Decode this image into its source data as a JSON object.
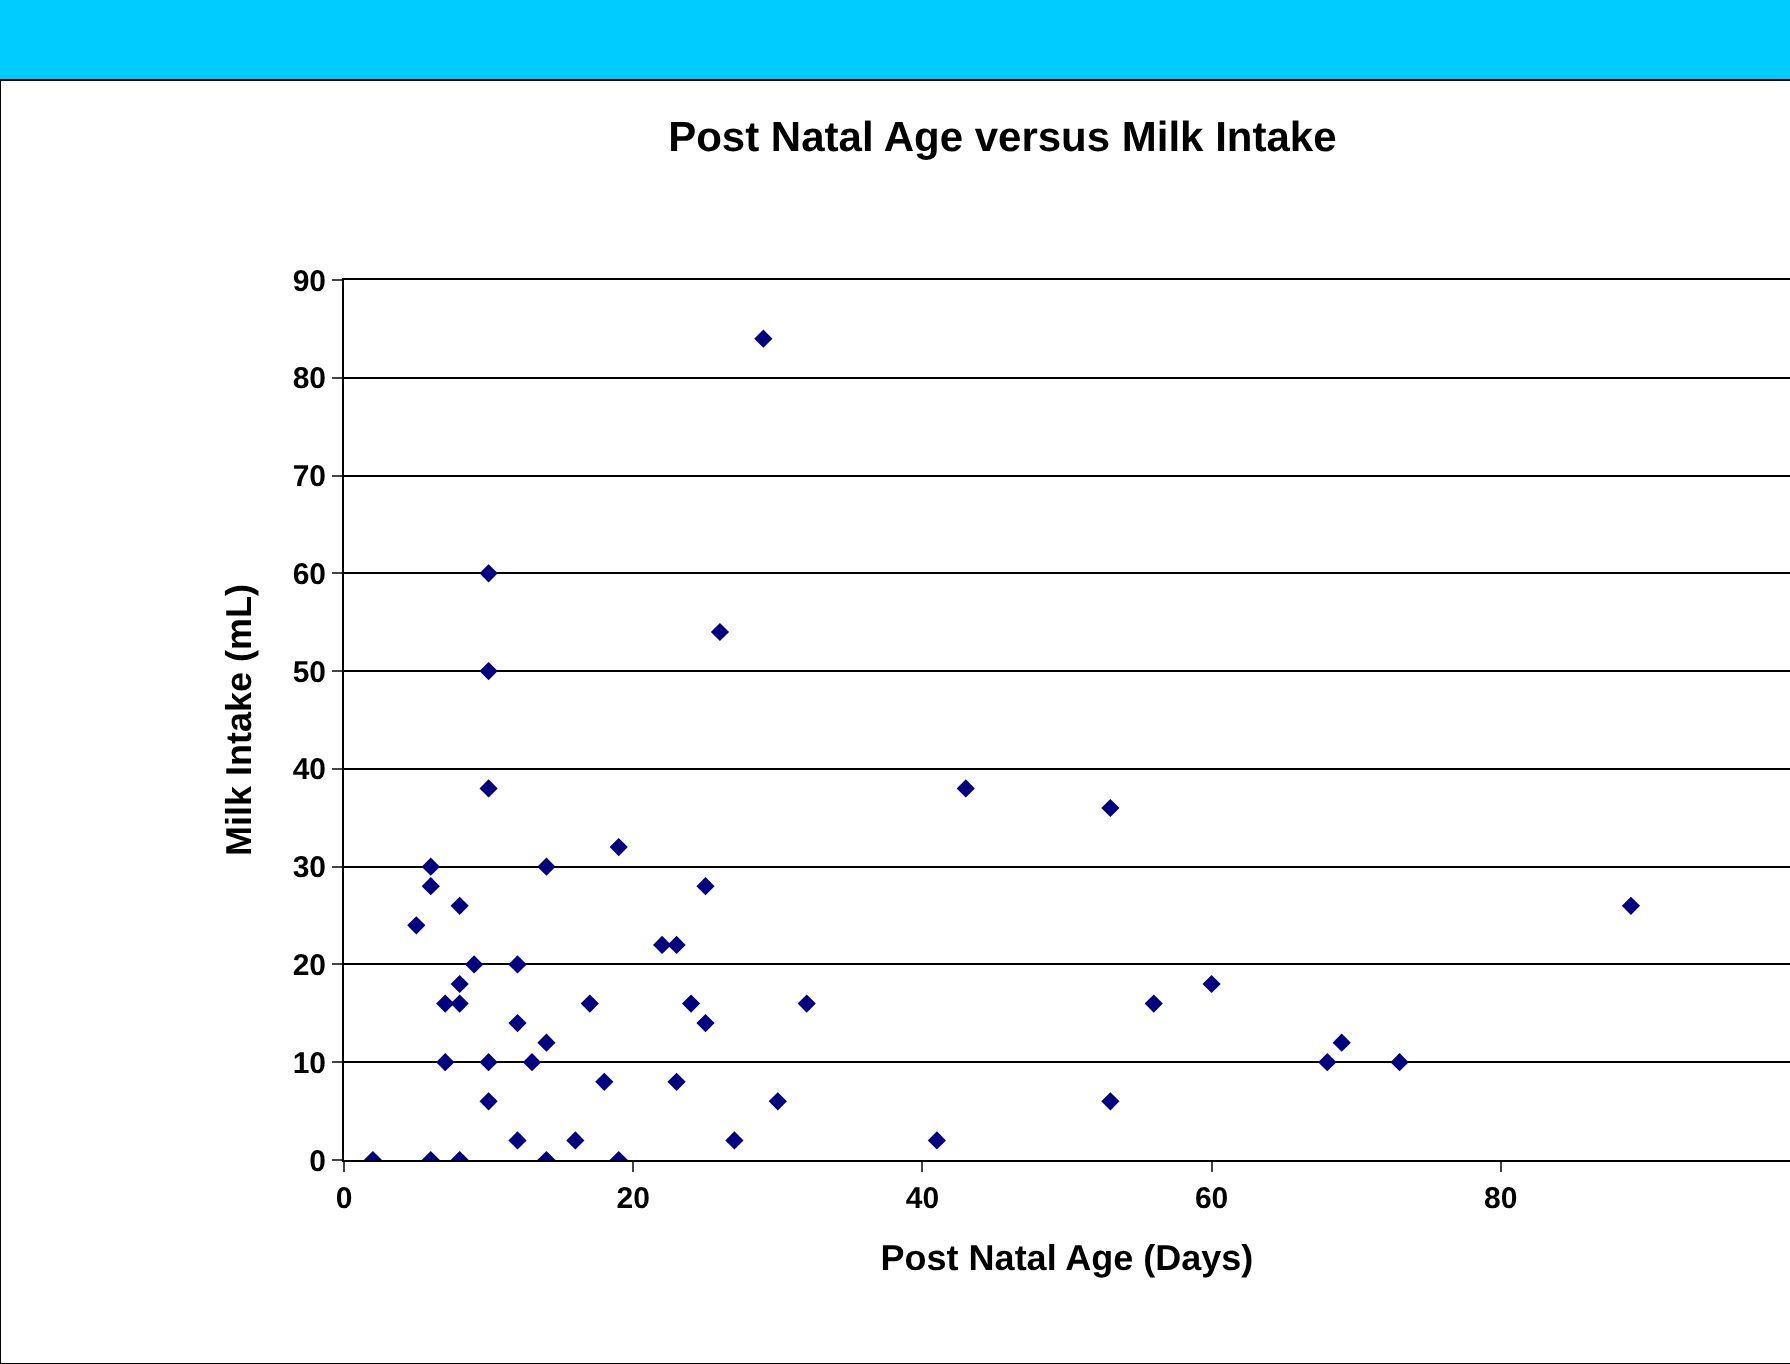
{
  "chart_data": {
    "type": "scatter",
    "title": "Post Natal Age versus Milk Intake",
    "xlabel": "Post Natal Age (Days)",
    "ylabel": "Milk Intake (mL)",
    "x": [
      2,
      5,
      6,
      6,
      6,
      7,
      7,
      8,
      8,
      8,
      8,
      9,
      10,
      10,
      10,
      10,
      10,
      12,
      12,
      12,
      13,
      14,
      14,
      14,
      16,
      17,
      18,
      19,
      19,
      22,
      23,
      23,
      24,
      25,
      25,
      26,
      27,
      29,
      30,
      32,
      41,
      43,
      53,
      53,
      56,
      60,
      68,
      69,
      73,
      89
    ],
    "values": [
      0,
      24,
      30,
      28,
      0,
      16,
      10,
      26,
      18,
      16,
      0,
      20,
      60,
      50,
      38,
      10,
      6,
      20,
      14,
      2,
      10,
      30,
      12,
      0,
      2,
      16,
      8,
      32,
      0,
      22,
      22,
      8,
      16,
      28,
      14,
      54,
      2,
      84,
      6,
      16,
      2,
      38,
      36,
      6,
      16,
      18,
      10,
      12,
      10,
      26
    ],
    "color": "#000080",
    "marker": "diamond",
    "xlim": [
      0,
      100
    ],
    "xticks": [
      0,
      20,
      40,
      60,
      80
    ],
    "ylim": [
      0,
      90
    ],
    "yticks": [
      0,
      10,
      20,
      30,
      40,
      50,
      60,
      70,
      80,
      90
    ],
    "grid": "y"
  }
}
